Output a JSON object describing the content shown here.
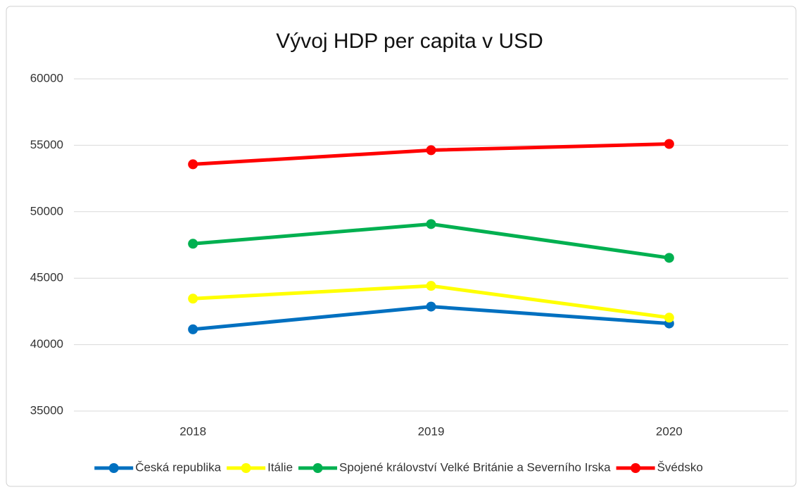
{
  "chart_data": {
    "type": "line",
    "title": "Vývoj HDP per capita v USD",
    "categories": [
      "2018",
      "2019",
      "2020"
    ],
    "series": [
      {
        "name": "Česká republika",
        "color": "#0070c0",
        "values": [
          41150,
          42860,
          41590
        ]
      },
      {
        "name": "Itálie",
        "color": "#ffff00",
        "values": [
          43460,
          44420,
          42030
        ]
      },
      {
        "name": "Spojené království Velké Británie a Severního Irska",
        "color": "#00b050",
        "values": [
          47590,
          49070,
          46530
        ]
      },
      {
        "name": "Švédsko",
        "color": "#ff0000",
        "values": [
          53570,
          54630,
          55100
        ]
      }
    ],
    "ylim": [
      35000,
      60000
    ],
    "yticks": [
      35000,
      40000,
      45000,
      50000,
      55000,
      60000
    ],
    "grid": true,
    "legend": "bottom"
  }
}
